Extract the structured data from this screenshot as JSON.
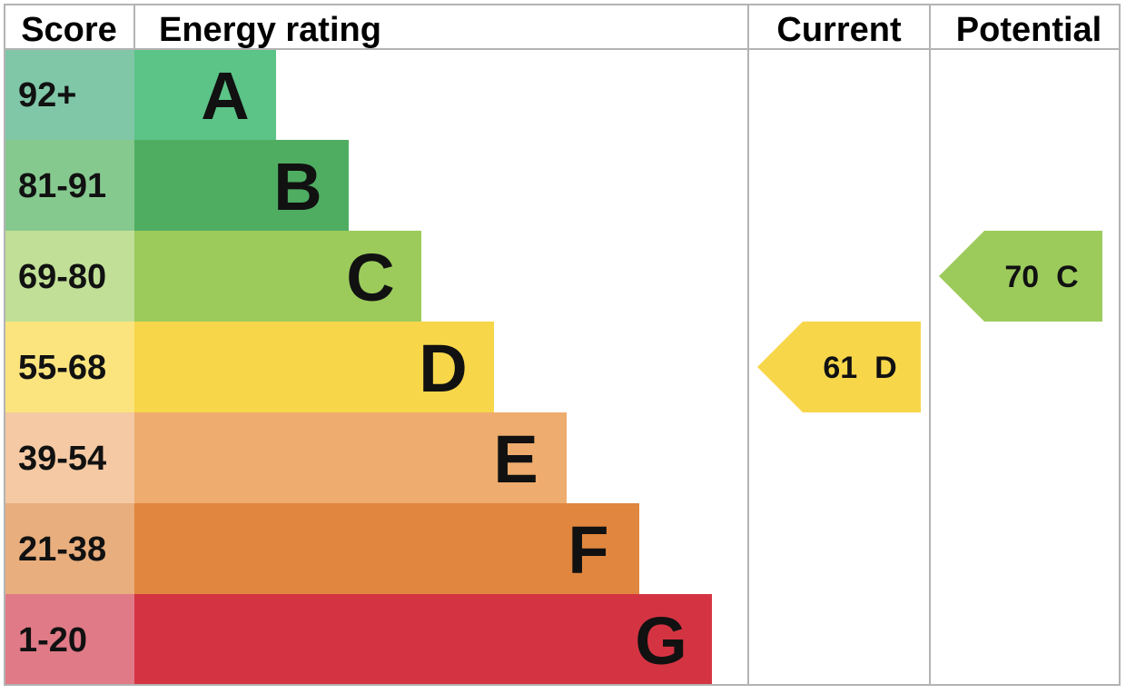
{
  "chart_data": {
    "type": "bar",
    "headers": {
      "score": "Score",
      "energy_rating": "Energy rating",
      "current": "Current",
      "potential": "Potential"
    },
    "bands": [
      {
        "range": "92+",
        "letter": "A",
        "bar_color": "#5bc486",
        "score_color": "#80c7a8"
      },
      {
        "range": "81-91",
        "letter": "B",
        "bar_color": "#4fad62",
        "score_color": "#86c98f"
      },
      {
        "range": "69-80",
        "letter": "C",
        "bar_color": "#9ccb5c",
        "score_color": "#c1df97"
      },
      {
        "range": "55-68",
        "letter": "D",
        "bar_color": "#f7d64a",
        "score_color": "#fbe47e"
      },
      {
        "range": "39-54",
        "letter": "E",
        "bar_color": "#eeac6e",
        "score_color": "#f4c9a3"
      },
      {
        "range": "21-38",
        "letter": "F",
        "bar_color": "#e0863e",
        "score_color": "#e8ae7d"
      },
      {
        "range": "1-20",
        "letter": "G",
        "bar_color": "#d43442",
        "score_color": "#e07a87"
      }
    ],
    "current": {
      "value": 61,
      "letter": "D",
      "label": "61  D",
      "color": "#f7d64a"
    },
    "potential": {
      "value": 70,
      "letter": "C",
      "label": "70  C",
      "color": "#9ccb5c"
    }
  }
}
